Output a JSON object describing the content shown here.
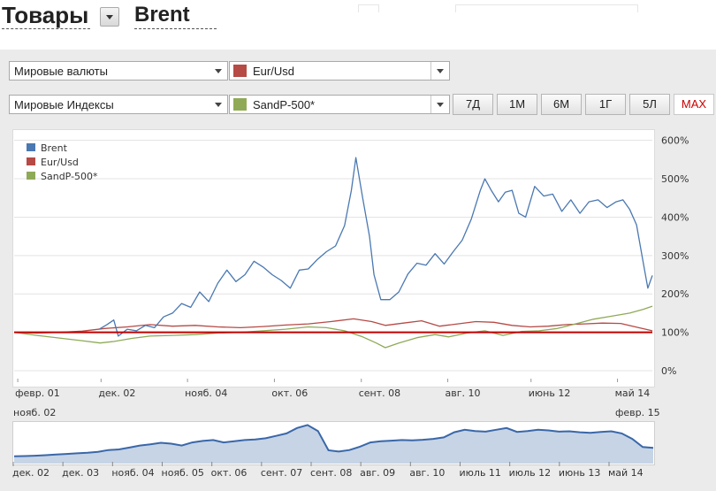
{
  "header": {
    "category_title": "Товары",
    "instrument_title": "Brent"
  },
  "selectors": {
    "row1": {
      "group": "Мировые валюты",
      "instrument": "Eur/Usd",
      "instrument_color": "#b64a45"
    },
    "row2": {
      "group": "Мировые Индексы",
      "instrument": "SandP-500*",
      "instrument_color": "#8faa57"
    }
  },
  "periods": [
    {
      "label": "7Д",
      "active": false
    },
    {
      "label": "1М",
      "active": false
    },
    {
      "label": "6М",
      "active": false
    },
    {
      "label": "1Г",
      "active": false
    },
    {
      "label": "5Л",
      "active": false
    },
    {
      "label": "MAX",
      "active": true
    }
  ],
  "navigator": {
    "range_start": "нояб. 02",
    "range_end": "февр. 15",
    "x_labels": [
      "дек. 02",
      "дек. 03",
      "нояб. 04",
      "нояб. 05",
      "окт. 06",
      "сент. 07",
      "сент. 08",
      "авг. 09",
      "авг. 10",
      "июль 11",
      "июль 12",
      "июнь 13",
      "май 14"
    ],
    "values": [
      2002.9,
      2003.1,
      2003.3,
      2003.5,
      2003.7,
      2003.9,
      2004.1,
      2004.3,
      2004.5,
      2004.7,
      2004.9,
      2005.1,
      2005.3,
      2005.5,
      2005.7,
      2005.9,
      2006.1,
      2006.3,
      2006.5,
      2006.7,
      2006.9,
      2007.1,
      2007.3,
      2007.5,
      2007.7,
      2007.9,
      2008.1,
      2008.3,
      2008.5,
      2008.7,
      2008.9,
      2009.1,
      2009.3,
      2009.5,
      2009.7,
      2009.9,
      2010.1,
      2010.3,
      2010.5,
      2010.7,
      2010.9,
      2011.1,
      2011.3,
      2011.5,
      2011.7,
      2011.9,
      2012.1,
      2012.3,
      2012.5,
      2012.7,
      2012.9,
      2013.1,
      2013.3,
      2013.5,
      2013.7,
      2013.9,
      2014.1,
      2014.3,
      2014.5,
      2014.7,
      2014.9,
      2015.1
    ],
    "levels": [
      24,
      25,
      26,
      28,
      30,
      32,
      34,
      36,
      39,
      45,
      47,
      53,
      60,
      64,
      69,
      66,
      60,
      70,
      75,
      78,
      70,
      74,
      78,
      80,
      84,
      92,
      100,
      118,
      128,
      108,
      44,
      40,
      45,
      56,
      70,
      74,
      76,
      78,
      77,
      79,
      82,
      87,
      104,
      112,
      108,
      106,
      112,
      118,
      105,
      108,
      112,
      110,
      106,
      107,
      104,
      102,
      105,
      107,
      100,
      82,
      55,
      52
    ]
  },
  "chart_data": {
    "type": "line",
    "x_tick_labels": [
      "февр. 01",
      "дек. 02",
      "нояб. 04",
      "окт. 06",
      "сент. 08",
      "авг. 10",
      "июнь 12",
      "май 14"
    ],
    "x_tick_values": [
      2001.08,
      2002.92,
      2004.83,
      2006.75,
      2008.67,
      2010.58,
      2012.42,
      2014.33
    ],
    "xlim": [
      2001.0,
      2015.1
    ],
    "y_tick_labels": [
      "0%",
      "100%",
      "200%",
      "300%",
      "400%",
      "500%",
      "600%"
    ],
    "ylim": [
      -30,
      620
    ],
    "baseline": 100,
    "legend_position": "top-left",
    "series": [
      {
        "name": "Brent",
        "color": "#4a78b1",
        "points": [
          [
            2002.88,
            108
          ],
          [
            2003.05,
            120
          ],
          [
            2003.2,
            132
          ],
          [
            2003.3,
            90
          ],
          [
            2003.5,
            108
          ],
          [
            2003.7,
            104
          ],
          [
            2003.9,
            118
          ],
          [
            2004.1,
            112
          ],
          [
            2004.3,
            140
          ],
          [
            2004.5,
            150
          ],
          [
            2004.7,
            175
          ],
          [
            2004.9,
            165
          ],
          [
            2005.1,
            205
          ],
          [
            2005.3,
            180
          ],
          [
            2005.5,
            228
          ],
          [
            2005.7,
            262
          ],
          [
            2005.9,
            232
          ],
          [
            2006.1,
            250
          ],
          [
            2006.3,
            285
          ],
          [
            2006.5,
            270
          ],
          [
            2006.7,
            250
          ],
          [
            2006.9,
            235
          ],
          [
            2007.1,
            215
          ],
          [
            2007.3,
            262
          ],
          [
            2007.5,
            265
          ],
          [
            2007.7,
            290
          ],
          [
            2007.9,
            310
          ],
          [
            2008.1,
            325
          ],
          [
            2008.3,
            378
          ],
          [
            2008.45,
            470
          ],
          [
            2008.55,
            555
          ],
          [
            2008.7,
            450
          ],
          [
            2008.85,
            350
          ],
          [
            2008.95,
            250
          ],
          [
            2009.1,
            185
          ],
          [
            2009.3,
            185
          ],
          [
            2009.5,
            205
          ],
          [
            2009.7,
            252
          ],
          [
            2009.9,
            280
          ],
          [
            2010.1,
            275
          ],
          [
            2010.3,
            305
          ],
          [
            2010.5,
            278
          ],
          [
            2010.7,
            310
          ],
          [
            2010.9,
            340
          ],
          [
            2011.1,
            395
          ],
          [
            2011.3,
            470
          ],
          [
            2011.4,
            500
          ],
          [
            2011.55,
            468
          ],
          [
            2011.7,
            440
          ],
          [
            2011.85,
            465
          ],
          [
            2012.0,
            470
          ],
          [
            2012.15,
            410
          ],
          [
            2012.3,
            400
          ],
          [
            2012.5,
            480
          ],
          [
            2012.7,
            455
          ],
          [
            2012.9,
            460
          ],
          [
            2013.1,
            415
          ],
          [
            2013.3,
            445
          ],
          [
            2013.5,
            410
          ],
          [
            2013.7,
            440
          ],
          [
            2013.9,
            445
          ],
          [
            2014.1,
            425
          ],
          [
            2014.3,
            440
          ],
          [
            2014.45,
            445
          ],
          [
            2014.6,
            420
          ],
          [
            2014.75,
            380
          ],
          [
            2014.9,
            280
          ],
          [
            2015.0,
            215
          ],
          [
            2015.1,
            248
          ]
        ]
      },
      {
        "name": "Eur/Usd",
        "color": "#b64a45",
        "points": [
          [
            2001.0,
            100
          ],
          [
            2001.5,
            98
          ],
          [
            2002.0,
            100
          ],
          [
            2002.5,
            103
          ],
          [
            2003.0,
            110
          ],
          [
            2003.5,
            114
          ],
          [
            2004.0,
            120
          ],
          [
            2004.5,
            116
          ],
          [
            2005.0,
            118
          ],
          [
            2005.5,
            114
          ],
          [
            2006.0,
            112
          ],
          [
            2006.5,
            115
          ],
          [
            2007.0,
            119
          ],
          [
            2007.5,
            122
          ],
          [
            2008.0,
            128
          ],
          [
            2008.5,
            135
          ],
          [
            2008.9,
            128
          ],
          [
            2009.2,
            118
          ],
          [
            2009.6,
            124
          ],
          [
            2010.0,
            130
          ],
          [
            2010.4,
            116
          ],
          [
            2010.8,
            122
          ],
          [
            2011.2,
            128
          ],
          [
            2011.6,
            126
          ],
          [
            2012.0,
            118
          ],
          [
            2012.4,
            114
          ],
          [
            2012.8,
            116
          ],
          [
            2013.2,
            120
          ],
          [
            2013.6,
            122
          ],
          [
            2014.0,
            124
          ],
          [
            2014.4,
            123
          ],
          [
            2014.8,
            112
          ],
          [
            2015.1,
            104
          ]
        ]
      },
      {
        "name": "SandP-500*",
        "color": "#8faa57",
        "points": [
          [
            2001.0,
            100
          ],
          [
            2001.5,
            92
          ],
          [
            2002.0,
            85
          ],
          [
            2002.5,
            78
          ],
          [
            2002.9,
            72
          ],
          [
            2003.2,
            76
          ],
          [
            2003.6,
            84
          ],
          [
            2004.0,
            90
          ],
          [
            2004.5,
            92
          ],
          [
            2005.0,
            94
          ],
          [
            2005.5,
            98
          ],
          [
            2006.0,
            100
          ],
          [
            2006.5,
            104
          ],
          [
            2007.0,
            108
          ],
          [
            2007.5,
            114
          ],
          [
            2007.9,
            112
          ],
          [
            2008.3,
            104
          ],
          [
            2008.7,
            88
          ],
          [
            2009.0,
            72
          ],
          [
            2009.2,
            60
          ],
          [
            2009.5,
            72
          ],
          [
            2009.9,
            86
          ],
          [
            2010.3,
            94
          ],
          [
            2010.6,
            88
          ],
          [
            2011.0,
            98
          ],
          [
            2011.4,
            104
          ],
          [
            2011.8,
            92
          ],
          [
            2012.2,
            102
          ],
          [
            2012.6,
            104
          ],
          [
            2013.0,
            110
          ],
          [
            2013.4,
            122
          ],
          [
            2013.8,
            134
          ],
          [
            2014.2,
            142
          ],
          [
            2014.6,
            150
          ],
          [
            2014.9,
            160
          ],
          [
            2015.1,
            168
          ]
        ]
      }
    ]
  }
}
